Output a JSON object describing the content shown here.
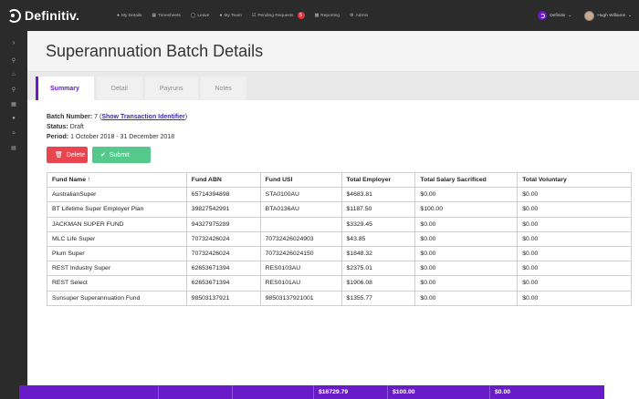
{
  "brand": {
    "name": "Definitiv."
  },
  "nav": {
    "items": [
      {
        "label": "My Details",
        "icon": "person-icon"
      },
      {
        "label": "Timesheets",
        "icon": "calendar-icon"
      },
      {
        "label": "Leave",
        "icon": "clock-icon"
      },
      {
        "label": "My Team",
        "icon": "team-icon"
      },
      {
        "label": "Pending Requests",
        "icon": "check-icon",
        "badge": "5"
      },
      {
        "label": "Reporting",
        "icon": "chart-icon"
      },
      {
        "label": "Admin",
        "icon": "gear-icon"
      }
    ]
  },
  "tenant": {
    "label": "Definitiv"
  },
  "user": {
    "name": "Hugh Williams"
  },
  "page": {
    "title": "Superannuation Batch Details"
  },
  "tabs": [
    "Summary",
    "Detail",
    "Payruns",
    "Notes"
  ],
  "batch": {
    "number_label": "Batch Number:",
    "number": "7",
    "show_link": "Show Transaction Identifier",
    "status_label": "Status:",
    "status": "Draft",
    "period_label": "Period:",
    "period": "1 October 2018 - 31 December 2018"
  },
  "buttons": {
    "delete": "Delete",
    "submit": "Submit"
  },
  "table": {
    "headers": [
      "Fund Name ↑",
      "Fund ABN",
      "Fund USI",
      "Total Employer",
      "Total Salary Sacrificed",
      "Total Voluntary"
    ],
    "rows": [
      [
        "AustralianSuper",
        "65714394898",
        "STA0100AU",
        "$4683.81",
        "$0.00",
        "$0.00"
      ],
      [
        "BT Lifetime Super Employer Plan",
        "39827542991",
        "BTA0136AU",
        "$1187.50",
        "$100.00",
        "$0.00"
      ],
      [
        "JACKMAN SUPER FUND",
        "94327975289",
        "",
        "$3329.45",
        "$0.00",
        "$0.00"
      ],
      [
        "MLC Life Super",
        "70732426024",
        "70732426024903",
        "$43.85",
        "$0.00",
        "$0.00"
      ],
      [
        "Plum Super",
        "70732426024",
        "70732426024150",
        "$1848.32",
        "$0.00",
        "$0.00"
      ],
      [
        "REST Industry Super",
        "62653671394",
        "RES0103AU",
        "$2375.01",
        "$0.00",
        "$0.00"
      ],
      [
        "REST Select",
        "62653671394",
        "RES0101AU",
        "$1906.08",
        "$0.00",
        "$0.00"
      ],
      [
        "Sunsuper Superannuation Fund",
        "98503137921",
        "98503137921001",
        "$1355.77",
        "$0.00",
        "$0.00"
      ]
    ],
    "totals": [
      "",
      "",
      "",
      "$16729.79",
      "$100.00",
      "$0.00"
    ]
  },
  "colors": {
    "accent": "#6a1bc9",
    "danger": "#e8454e",
    "success": "#55c98b",
    "topbar": "#2b2b2b"
  }
}
